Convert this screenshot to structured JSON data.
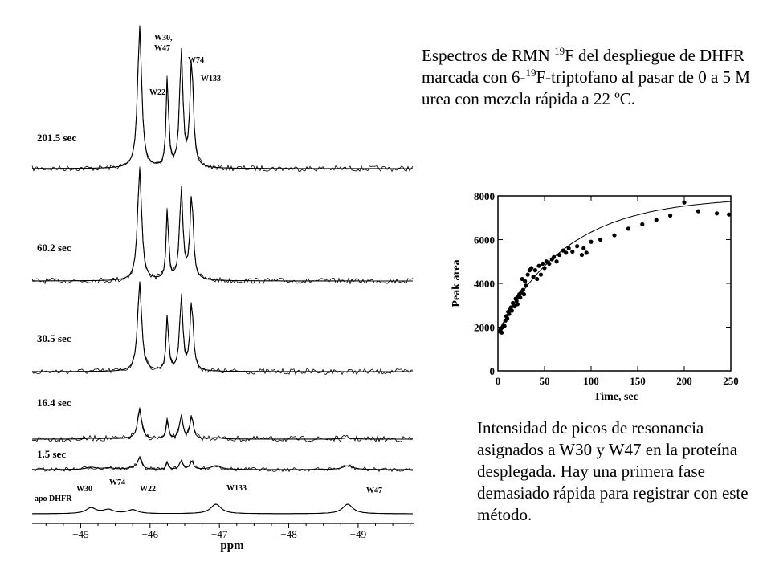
{
  "caption_top": {
    "pre": "Espectros de RMN ",
    "sup1": "19",
    "mid": "F del despliegue de DHFR marcada con 6-",
    "sup2": "19",
    "post": "F-triptofano al pasar de 0 a 5 M urea con mezcla rápida a 22 ºC."
  },
  "caption_bottom": "Intensidad de picos de resonancia asignados a W30 y W47 en la proteína desplegada. Hay una primera fase demasiado rápida para registrar con este método.",
  "nmr": {
    "x_axis_label": "ppm",
    "x_ticks": [
      "−45",
      "−46",
      "−47",
      "−48",
      "−49"
    ],
    "x_tick_values": [
      -45,
      -46,
      -47,
      -48,
      -49
    ],
    "x_range": [
      -44.3,
      -49.8
    ],
    "spectra": [
      {
        "label": "201.5 sec",
        "peak_scale": 1.0
      },
      {
        "label": "60.2 sec",
        "peak_scale": 1.0
      },
      {
        "label": "30.5 sec",
        "peak_scale": 0.95
      },
      {
        "label": "16.4 sec",
        "peak_scale": 0.7
      },
      {
        "label": "1.5 sec",
        "peak_scale": 0.35
      },
      {
        "label": "apo DHFR",
        "peak_scale": 0.0
      }
    ],
    "peak_labels_top": [
      "W30,",
      "W47",
      "W74",
      "W22",
      "W133"
    ],
    "peak_labels_apo": [
      "W30",
      "W74",
      "W22",
      "W133",
      "W47"
    ],
    "unfolded_peaks_ppm": [
      -45.85,
      -46.25,
      -46.45,
      -46.6
    ],
    "apo_peaks_ppm": [
      -45.15,
      -45.4,
      -45.75,
      -46.95,
      -48.85
    ]
  },
  "chart_data": {
    "type": "scatter",
    "title": "",
    "xlabel": "Time, sec",
    "ylabel": "Peak area",
    "xlim": [
      0,
      250
    ],
    "ylim": [
      0,
      8000
    ],
    "x_ticks": [
      0,
      50,
      100,
      150,
      200,
      250
    ],
    "y_ticks": [
      0,
      2000,
      4000,
      6000,
      8000
    ],
    "fit_curve": {
      "a": 1750,
      "b": 6200,
      "k": 0.0135
    },
    "x": [
      2,
      3,
      4,
      5,
      6,
      7,
      8,
      9,
      10,
      11,
      12,
      13,
      14,
      15,
      16,
      17,
      18,
      19,
      20,
      21,
      22,
      23,
      24,
      25,
      26,
      27,
      28,
      29,
      30,
      32,
      34,
      36,
      38,
      40,
      42,
      44,
      46,
      48,
      50,
      52,
      55,
      58,
      60,
      63,
      66,
      70,
      73,
      76,
      80,
      85,
      90,
      92,
      95,
      100,
      110,
      125,
      140,
      155,
      170,
      185,
      200,
      215,
      235,
      248
    ],
    "y": [
      1800,
      1900,
      1750,
      2000,
      2100,
      2050,
      2300,
      2500,
      2400,
      2700,
      2600,
      2800,
      2900,
      2750,
      3100,
      3000,
      2950,
      3300,
      3200,
      3050,
      3400,
      3500,
      3350,
      3600,
      4200,
      3700,
      3500,
      4100,
      3900,
      4400,
      4600,
      4700,
      4300,
      4600,
      4200,
      4800,
      4400,
      4900,
      4700,
      5000,
      4900,
      5100,
      5200,
      5000,
      5300,
      5500,
      5400,
      5600,
      5450,
      5700,
      5300,
      5600,
      5400,
      5900,
      6000,
      6200,
      6500,
      6700,
      6900,
      7100,
      7700,
      7300,
      7200,
      7150
    ]
  }
}
